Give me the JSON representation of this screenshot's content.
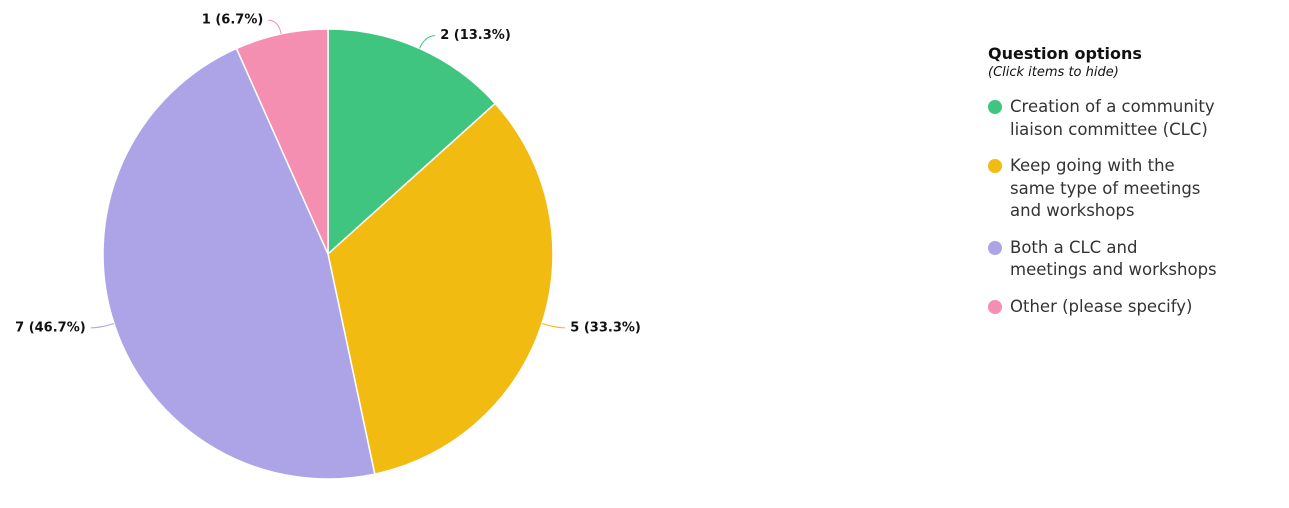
{
  "chart_data": {
    "type": "pie",
    "categories": [
      "Creation of a community liaison committee (CLC)",
      "Keep going with the same type of meetings and workshops",
      "Both a CLC and meetings and workshops",
      "Other (please specify)"
    ],
    "values": [
      2,
      5,
      7,
      1
    ],
    "value_labels": [
      "2 (13.3%)",
      "5 (33.3%)",
      "7 (46.7%)",
      "1 (6.7%)"
    ],
    "colors": [
      "#40c580",
      "#f2bb11",
      "#aca4e6",
      "#f48fb1"
    ],
    "legend_title": "Question options",
    "legend_subtitle": "(Click items to hide)",
    "legend": "right"
  }
}
